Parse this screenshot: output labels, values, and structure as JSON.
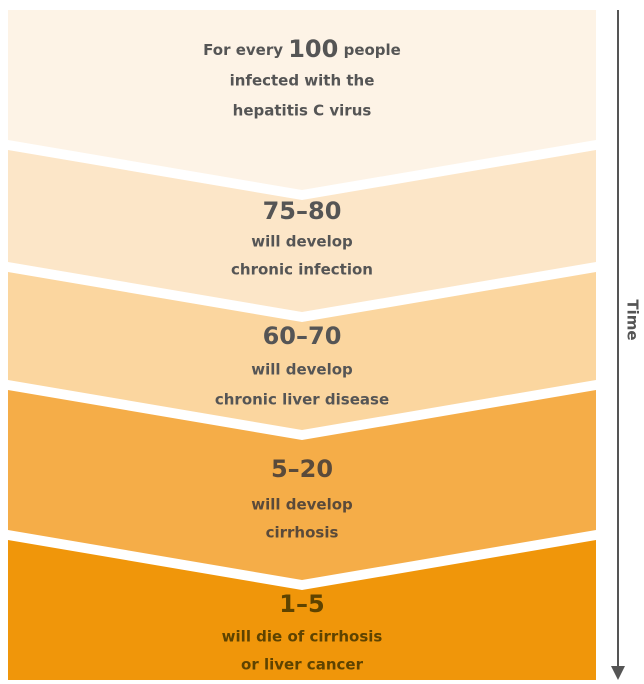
{
  "header": {
    "prefix": "For every",
    "number": "100",
    "suffix": "people",
    "lines": [
      "infected with the",
      "hepatitis C virus"
    ]
  },
  "stages": [
    {
      "number": "75–80",
      "lines": [
        "will develop",
        "chronic infection"
      ]
    },
    {
      "number": "60–70",
      "lines": [
        "will develop",
        "chronic liver disease"
      ]
    },
    {
      "number": "5–20",
      "lines": [
        "will develop",
        "cirrhosis"
      ]
    },
    {
      "number": "1–5",
      "lines": [
        "will die of cirrhosis",
        "or liver cancer"
      ]
    }
  ],
  "axis_label": "Time"
}
